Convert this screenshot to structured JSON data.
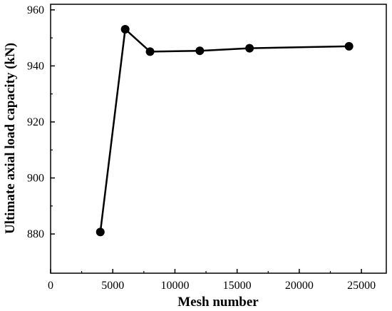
{
  "chart_data": {
    "type": "line",
    "title": "",
    "xlabel": "Mesh number",
    "ylabel": "Ultimate axial load capacity (kN)",
    "xlim": [
      0,
      27000
    ],
    "ylim": [
      866,
      962
    ],
    "xticks": [
      0,
      5000,
      10000,
      15000,
      20000,
      25000
    ],
    "yticks": [
      880,
      900,
      920,
      940,
      960
    ],
    "x_tick_labels": [
      "0",
      "5000",
      "10000",
      "15000",
      "20000",
      "25000"
    ],
    "y_tick_labels": [
      "880",
      "900",
      "920",
      "940",
      "960"
    ],
    "grid": false,
    "legend": "none",
    "colors": {
      "line": "#000000",
      "marker": "#000000"
    },
    "series": [
      {
        "x": [
          4000,
          6000,
          8000,
          12000,
          16000,
          24000
        ],
        "values": [
          880.7,
          953.1,
          945.1,
          945.4,
          946.3,
          947.0
        ]
      }
    ]
  }
}
